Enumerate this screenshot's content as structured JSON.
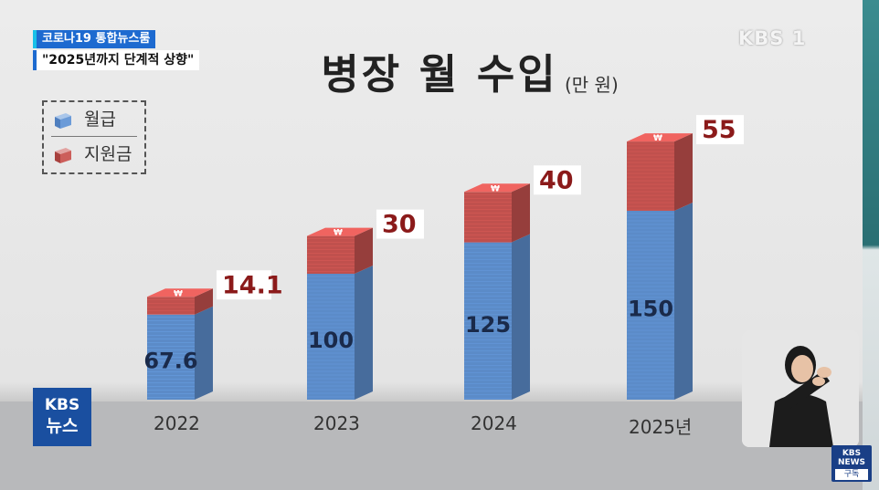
{
  "broadcast": {
    "topic_tag": "코로나19 통합뉴스룸",
    "topic_subtitle": "\"2025년까지 단계적 상향\"",
    "channel_logo": "KBS 1",
    "news_badge_line1": "KBS",
    "news_badge_line2": "뉴스",
    "subscribe_line1": "KBS NEWS",
    "subscribe_line2": "구독",
    "sign_interpreter": "sign-language-interpreter"
  },
  "colors": {
    "salary": "#5b8bc8",
    "support": "#c0504d",
    "label_text": "#8b1a1a",
    "value_text": "#1a2a4a"
  },
  "legend": {
    "salary_label": "월급",
    "support_label": "지원금",
    "salary_icon": "blue-money-stack-icon",
    "support_icon": "red-money-stack-icon"
  },
  "chart_data": {
    "type": "bar",
    "stacked": true,
    "title": "병장 월 수입",
    "unit": "(만 원)",
    "categories": [
      "2022",
      "2023",
      "2024",
      "2025년"
    ],
    "series": [
      {
        "name": "월급",
        "values": [
          67.6,
          100,
          125,
          150
        ]
      },
      {
        "name": "지원금",
        "values": [
          14.1,
          30,
          40,
          55
        ]
      }
    ],
    "value_labels": {
      "salary": [
        "67.6",
        "100",
        "125",
        "150"
      ],
      "support": [
        "14.1",
        "30",
        "40",
        "55"
      ]
    },
    "legend_position": "top-left",
    "grid": false
  }
}
